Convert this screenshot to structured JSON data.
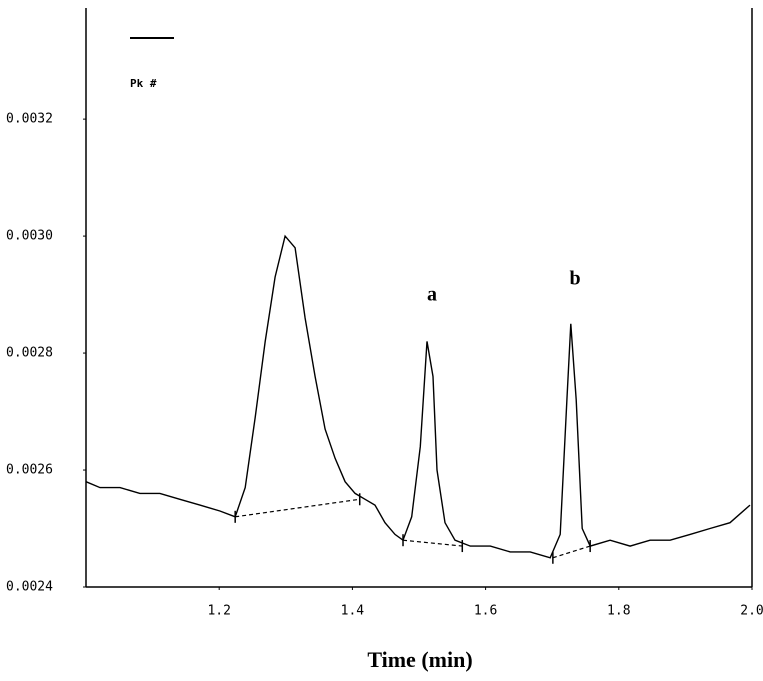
{
  "chart_data": {
    "type": "line",
    "x_label": "Time (min)",
    "legend_text": "Pk #",
    "x": [
      1.0,
      1.021,
      1.051,
      1.081,
      1.111,
      1.141,
      1.171,
      1.201,
      1.224,
      1.239,
      1.254,
      1.269,
      1.284,
      1.299,
      1.314,
      1.329,
      1.344,
      1.359,
      1.374,
      1.389,
      1.404,
      1.419,
      1.434,
      1.449,
      1.464,
      1.476,
      1.489,
      1.502,
      1.512,
      1.521,
      1.527,
      1.539,
      1.554,
      1.577,
      1.607,
      1.637,
      1.667,
      1.697,
      1.712,
      1.722,
      1.728,
      1.736,
      1.745,
      1.757,
      1.787,
      1.817,
      1.847,
      1.877,
      1.907,
      1.937,
      1.967,
      1.997
    ],
    "series": [
      {
        "color": "#000000",
        "values": [
          0.00258,
          0.00257,
          0.00257,
          0.00256,
          0.00256,
          0.00255,
          0.00254,
          0.00253,
          0.00252,
          0.00257,
          0.00269,
          0.00282,
          0.00293,
          0.003,
          0.00298,
          0.00286,
          0.00276,
          0.00267,
          0.00262,
          0.00258,
          0.00256,
          0.00255,
          0.00254,
          0.00251,
          0.00249,
          0.00248,
          0.00252,
          0.00264,
          0.00282,
          0.00276,
          0.0026,
          0.00251,
          0.00248,
          0.00247,
          0.00247,
          0.00246,
          0.00246,
          0.00245,
          0.00249,
          0.00272,
          0.00285,
          0.00272,
          0.0025,
          0.00247,
          0.00248,
          0.00247,
          0.00248,
          0.00248,
          0.00249,
          0.0025,
          0.00251,
          0.00254
        ]
      }
    ],
    "baselines": [
      {
        "x": [
          1.224,
          1.411
        ],
        "y": [
          0.00252,
          0.00255
        ]
      },
      {
        "x": [
          1.476,
          1.565
        ],
        "y": [
          0.00248,
          0.00247
        ]
      },
      {
        "x": [
          1.701,
          1.757
        ],
        "y": [
          0.00245,
          0.00247
        ]
      }
    ],
    "annotations": [
      "a",
      "b"
    ],
    "xlim": [
      1.0,
      2.0
    ],
    "xticks": [
      1.2,
      1.4,
      1.6,
      1.8,
      {
        "value": 2,
        "label": "2.0"
      }
    ],
    "ylim": [
      0.0024,
      0.00339
    ],
    "yticks": [
      0.0024,
      0.0026,
      0.0028,
      {
        "value": 0.003,
        "label": "0.0030"
      },
      0.0032
    ]
  }
}
